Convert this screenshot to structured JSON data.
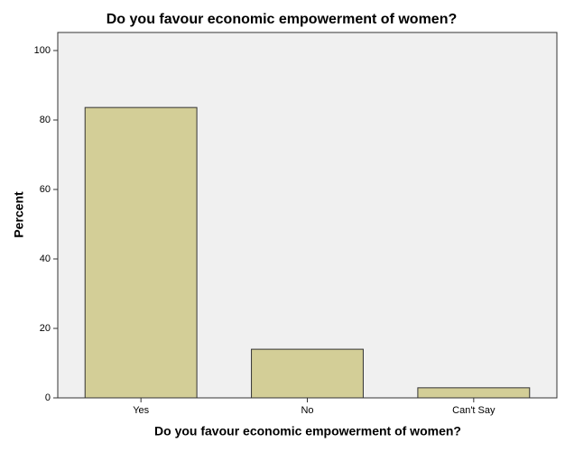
{
  "chart_data": {
    "type": "bar",
    "title": "Do you favour economic empowerment of women?",
    "x_label": "Do you favour economic empowerment of women?",
    "y_label": "Percent",
    "categories": [
      "Yes",
      "No",
      "Can't Say"
    ],
    "values": [
      83.6,
      14.0,
      2.9
    ],
    "color": "#d3ce97",
    "ylim": [
      0,
      105.2
    ],
    "yticks": [
      0,
      20,
      40,
      60,
      80,
      100
    ],
    "grid": false
  }
}
